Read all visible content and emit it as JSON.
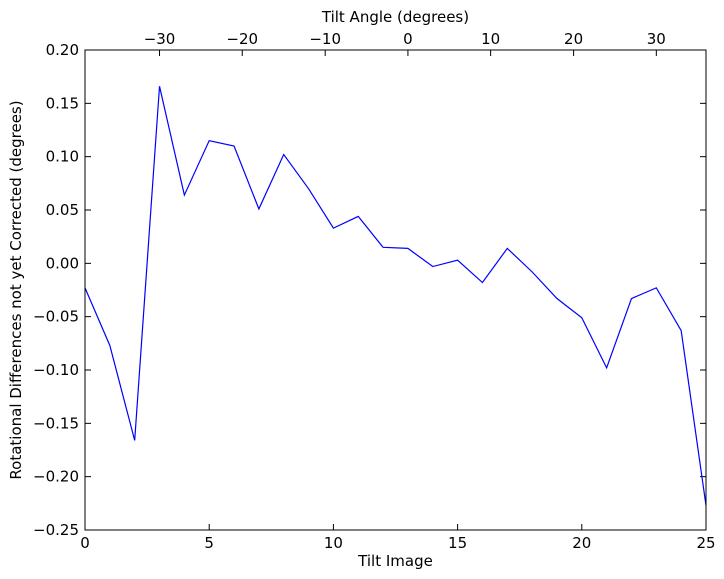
{
  "chart_data": {
    "type": "line",
    "xlabel": "Tilt Image",
    "ylabel": "Rotational Differences not yet Corrected (degrees)",
    "top_xlabel": "Tilt Angle (degrees)",
    "xlim": [
      0,
      25
    ],
    "ylim": [
      -0.25,
      0.2
    ],
    "x_ticks": [
      {
        "value": 0,
        "label": "0"
      },
      {
        "value": 5,
        "label": "5"
      },
      {
        "value": 10,
        "label": "10"
      },
      {
        "value": 15,
        "label": "15"
      },
      {
        "value": 20,
        "label": "20"
      },
      {
        "value": 25,
        "label": "25"
      }
    ],
    "y_ticks": [
      {
        "value": 0.2,
        "label": "0.20"
      },
      {
        "value": 0.15,
        "label": "0.15"
      },
      {
        "value": 0.1,
        "label": "0.10"
      },
      {
        "value": 0.05,
        "label": "0.05"
      },
      {
        "value": 0.0,
        "label": "0.00"
      },
      {
        "value": -0.05,
        "label": "−0.05"
      },
      {
        "value": -0.1,
        "label": "−0.10"
      },
      {
        "value": -0.15,
        "label": "−0.15"
      },
      {
        "value": -0.2,
        "label": "−0.20"
      },
      {
        "value": -0.25,
        "label": "−0.25"
      }
    ],
    "top_ticks": [
      {
        "tilt_image": 3.0,
        "label": "−30"
      },
      {
        "tilt_image": 6.33,
        "label": "−20"
      },
      {
        "tilt_image": 9.67,
        "label": "−10"
      },
      {
        "tilt_image": 13.0,
        "label": "0"
      },
      {
        "tilt_image": 16.33,
        "label": "10"
      },
      {
        "tilt_image": 19.67,
        "label": "20"
      },
      {
        "tilt_image": 23.0,
        "label": "30"
      }
    ],
    "grid": false,
    "series": [
      {
        "color": "#0000ff",
        "x": [
          0,
          1,
          2,
          3,
          4,
          5,
          6,
          7,
          8,
          9,
          10,
          11,
          12,
          13,
          14,
          15,
          16,
          17,
          18,
          19,
          20,
          21,
          22,
          23,
          24,
          25
        ],
        "y": [
          -0.023,
          -0.077,
          -0.166,
          0.166,
          0.064,
          0.115,
          0.11,
          0.051,
          0.102,
          0.07,
          0.033,
          0.044,
          0.015,
          0.014,
          -0.003,
          0.003,
          -0.018,
          0.014,
          -0.008,
          -0.033,
          -0.051,
          -0.098,
          -0.033,
          -0.023,
          -0.063,
          -0.227
        ]
      }
    ]
  }
}
